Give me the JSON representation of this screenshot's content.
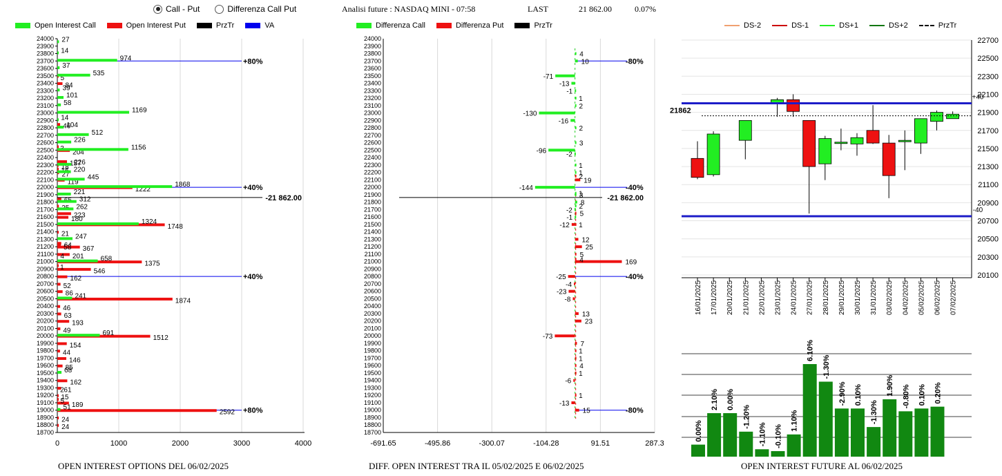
{
  "controls": {
    "radio_call_put": "Call - Put",
    "radio_diff": "Differenza Call Put",
    "selected": "call_put"
  },
  "header": {
    "title": "Analisi future : NASDAQ MINI - 07:58",
    "last_label": "LAST",
    "last_value": "21 862.00",
    "change": "0.07%"
  },
  "colors": {
    "call": "#22ee22",
    "put": "#ee1111",
    "prztr": "#000000",
    "va": "#0000ee",
    "candle_up": "#22ee22",
    "candle_down": "#ee1111",
    "volbar": "#118811"
  },
  "chart_data": [
    {
      "id": "oi",
      "type": "bar",
      "orientation": "horizontal",
      "title": "OPEN INTEREST OPTIONS DEL 06/02/2025",
      "legend": [
        "Open Interest Call",
        "Open Interest Put",
        "PrzTr",
        "VA"
      ],
      "strikes": [
        24000,
        23900,
        23800,
        23700,
        23600,
        23500,
        23400,
        23300,
        23200,
        23100,
        23000,
        22900,
        22800,
        22700,
        22600,
        22500,
        22400,
        22300,
        22200,
        22100,
        22000,
        21900,
        21800,
        21700,
        21600,
        21500,
        21400,
        21300,
        21200,
        21100,
        21000,
        20900,
        20800,
        20700,
        20600,
        20500,
        20400,
        20300,
        20200,
        20100,
        20000,
        19900,
        19800,
        19700,
        19600,
        19500,
        19400,
        19300,
        19200,
        19100,
        19000,
        18900,
        18800,
        18700
      ],
      "y_tick_labels": [
        "24000",
        "23900",
        "23800",
        "23700",
        "23600",
        "23500",
        "23400",
        "23300",
        "23200",
        "23100",
        "23000",
        "22900",
        "22800",
        "22700",
        "22600",
        "22500",
        "22400",
        "22300",
        "22200",
        "22100",
        "22000",
        "21900",
        "21800",
        "21700",
        "21600",
        "21500",
        "21400",
        "21300",
        "21200",
        "21100",
        "21000",
        "20900",
        "20800",
        "20700",
        "20600",
        "20500",
        "20400",
        "20300",
        "20200",
        "20100",
        "20000",
        "19900",
        "19800",
        "19700",
        "19600",
        "19500",
        "19400",
        "19300",
        "19200",
        "19100",
        "19000",
        "18900",
        "18800",
        "18700"
      ],
      "call_labeled": [
        [
          23950,
          27
        ],
        [
          23800,
          14
        ],
        [
          23700,
          974
        ],
        [
          23600,
          37
        ],
        [
          23500,
          535
        ],
        [
          23300,
          39
        ],
        [
          23200,
          101
        ],
        [
          23100,
          58
        ],
        [
          23000,
          1169
        ],
        [
          22900,
          14
        ],
        [
          22800,
          104
        ],
        [
          22700,
          512
        ],
        [
          22600,
          226
        ],
        [
          22500,
          1156
        ],
        [
          22300,
          226
        ],
        [
          22200,
          220
        ],
        [
          22100,
          445
        ],
        [
          22000,
          1868
        ],
        [
          21900,
          221
        ],
        [
          21800,
          312
        ],
        [
          21700,
          262
        ],
        [
          21500,
          1324
        ],
        [
          21300,
          247
        ],
        [
          21000,
          658
        ],
        [
          20500,
          241
        ],
        [
          20000,
          691
        ],
        [
          19500,
          68
        ],
        [
          19000,
          51
        ]
      ],
      "put_labeled": [
        [
          23500,
          5
        ],
        [
          23400,
          84
        ],
        [
          22850,
          46
        ],
        [
          22550,
          3
        ],
        [
          22500,
          204
        ],
        [
          22350,
          157
        ],
        [
          22300,
          18
        ],
        [
          22250,
          16
        ],
        [
          22200,
          27
        ],
        [
          22100,
          119
        ],
        [
          22000,
          1222
        ],
        [
          21850,
          65
        ],
        [
          21750,
          25
        ],
        [
          21650,
          223
        ],
        [
          21600,
          180
        ],
        [
          21500,
          1748
        ],
        [
          21400,
          21
        ],
        [
          21250,
          64
        ],
        [
          21200,
          367
        ],
        [
          21220,
          58
        ],
        [
          21100,
          201
        ],
        [
          21100,
          4
        ],
        [
          21000,
          1375
        ],
        [
          20900,
          546
        ],
        [
          20950,
          1
        ],
        [
          20800,
          162
        ],
        [
          20700,
          52
        ],
        [
          20600,
          86
        ],
        [
          20500,
          1874
        ],
        [
          20400,
          46
        ],
        [
          20300,
          63
        ],
        [
          20200,
          193
        ],
        [
          20100,
          49
        ],
        [
          20000,
          1512
        ],
        [
          19900,
          154
        ],
        [
          19800,
          44
        ],
        [
          19700,
          146
        ],
        [
          19600,
          85
        ],
        [
          19400,
          162
        ],
        [
          19300,
          61
        ],
        [
          19300,
          2
        ],
        [
          19200,
          15
        ],
        [
          19100,
          189
        ],
        [
          19150,
          5
        ],
        [
          19000,
          2592
        ],
        [
          18900,
          24
        ],
        [
          18800,
          24
        ]
      ],
      "xlim": [
        0,
        4000
      ],
      "x_tick_labels": [
        "0",
        "1000",
        "2000",
        "3000",
        "4000"
      ],
      "reference_lines": [
        {
          "strike": 23700,
          "label": "80%"
        },
        {
          "strike": 22000,
          "label": "40%"
        },
        {
          "strike": 20800,
          "label": "40%"
        },
        {
          "strike": 19000,
          "label": "80%"
        }
      ],
      "price_line": {
        "value": 21862,
        "label": "21 862.00"
      }
    },
    {
      "id": "diff",
      "type": "bar",
      "orientation": "horizontal",
      "title": "DIFF. OPEN INTEREST TRA IL 05/02/2025 E 06/02/2025",
      "legend": [
        "Differenza Call",
        "Differenza Put",
        "PrzTr"
      ],
      "xlim": [
        -691.65,
        287.3
      ],
      "x_tick_labels": [
        "-691.65",
        "-495.86",
        "-300.07",
        "-104.28",
        "91.51",
        "287.3"
      ],
      "call_labeled": [
        [
          23800,
          4
        ],
        [
          23700,
          10
        ],
        [
          23500,
          -71
        ],
        [
          23400,
          -13
        ],
        [
          23300,
          -1
        ],
        [
          23200,
          1
        ],
        [
          23100,
          2
        ],
        [
          23000,
          -130
        ],
        [
          22900,
          -16
        ],
        [
          22800,
          2
        ],
        [
          22600,
          3
        ],
        [
          22500,
          -96
        ],
        [
          22450,
          -2
        ],
        [
          22300,
          1
        ],
        [
          22200,
          1
        ],
        [
          22000,
          -144
        ],
        [
          21920,
          1
        ],
        [
          21900,
          3
        ],
        [
          21800,
          8
        ],
        [
          21750,
          2
        ],
        [
          21700,
          -2
        ],
        [
          21600,
          -1
        ]
      ],
      "put_labeled": [
        [
          22100,
          19
        ],
        [
          22150,
          2
        ],
        [
          21650,
          5
        ],
        [
          21500,
          -12
        ],
        [
          21500,
          1
        ],
        [
          21300,
          12
        ],
        [
          21200,
          25
        ],
        [
          21100,
          5
        ],
        [
          21000,
          169
        ],
        [
          21030,
          4
        ],
        [
          20800,
          -25
        ],
        [
          20700,
          -4
        ],
        [
          20600,
          -23
        ],
        [
          20500,
          -8
        ],
        [
          20300,
          13
        ],
        [
          20200,
          23
        ],
        [
          20000,
          -73
        ],
        [
          19900,
          7
        ],
        [
          19800,
          1
        ],
        [
          19700,
          1
        ],
        [
          19600,
          4
        ],
        [
          19500,
          1
        ],
        [
          19400,
          -6
        ],
        [
          19200,
          1
        ],
        [
          19100,
          -13
        ],
        [
          19000,
          15
        ]
      ],
      "reference_lines": [
        {
          "strike": 23700,
          "label": "80%"
        },
        {
          "strike": 22000,
          "label": "40%"
        },
        {
          "strike": 20800,
          "label": "40%"
        },
        {
          "strike": 19000,
          "label": "80%"
        }
      ],
      "price_line": {
        "value": 21862,
        "label": "21 862.00"
      }
    },
    {
      "id": "candles",
      "type": "candlestick",
      "legend": [
        "DS-2",
        "DS-1",
        "DS+1",
        "DS+2",
        "PrzTr"
      ],
      "ylim": [
        20100,
        22700
      ],
      "y_tick_labels": [
        "22700",
        "22500",
        "22300",
        "22100",
        "21900",
        "21700",
        "21500",
        "21300",
        "21100",
        "20900",
        "20700",
        "20500",
        "20300",
        "20100"
      ],
      "dates": [
        "16/01/2025",
        "17/01/2025",
        "20/01/2025",
        "21/01/2025",
        "22/01/2025",
        "23/01/2025",
        "24/01/2025",
        "27/01/2025",
        "28/01/2025",
        "29/01/2025",
        "30/01/2025",
        "31/01/2025",
        "03/02/2025",
        "04/02/2025",
        "05/02/2025",
        "06/02/2025",
        "07/02/2025"
      ],
      "ohlc": [
        [
          21390,
          21580,
          21160,
          21180
        ],
        [
          21210,
          21690,
          21190,
          21660
        ],
        null,
        [
          21590,
          21810,
          21380,
          21810
        ],
        null,
        [
          22000,
          22060,
          21850,
          22040
        ],
        [
          22040,
          22100,
          21850,
          21910
        ],
        [
          21810,
          21810,
          20780,
          21300
        ],
        [
          21330,
          21640,
          21150,
          21610
        ],
        [
          21560,
          21720,
          21480,
          21570
        ],
        [
          21550,
          21670,
          21420,
          21620
        ],
        [
          21700,
          21980,
          21550,
          21560
        ],
        [
          21560,
          21650,
          20950,
          21200
        ],
        [
          21590,
          21700,
          21260,
          21590
        ],
        [
          21560,
          21830,
          21440,
          21830
        ],
        [
          21800,
          21920,
          21700,
          21900
        ],
        [
          21830,
          21910,
          21830,
          21880
        ]
      ],
      "levels": [
        {
          "value": 22000,
          "label": "+40"
        },
        {
          "value": 20750,
          "label": "-40"
        }
      ],
      "price": {
        "value": 21862,
        "label": "21862"
      }
    },
    {
      "id": "oi_future",
      "type": "bar",
      "title": "OPEN INTEREST FUTURE AL 06/02/2025",
      "values": [
        0.13,
        0.47,
        0.47,
        0.27,
        0.08,
        0.06,
        0.24,
        1.0,
        0.81,
        0.52,
        0.52,
        0.32,
        0.62,
        0.49,
        0.52,
        0.54
      ],
      "labels": [
        "0.00%",
        "2.10%",
        "0.00%",
        "-1.20%",
        "-1.10%",
        "-0.10%",
        "1.10%",
        "6.10%",
        "-1.30%",
        "-2.90%",
        "0.10%",
        "-1.30%",
        "1.90%",
        "-0.80%",
        "0.10%",
        "0.20%"
      ]
    }
  ]
}
